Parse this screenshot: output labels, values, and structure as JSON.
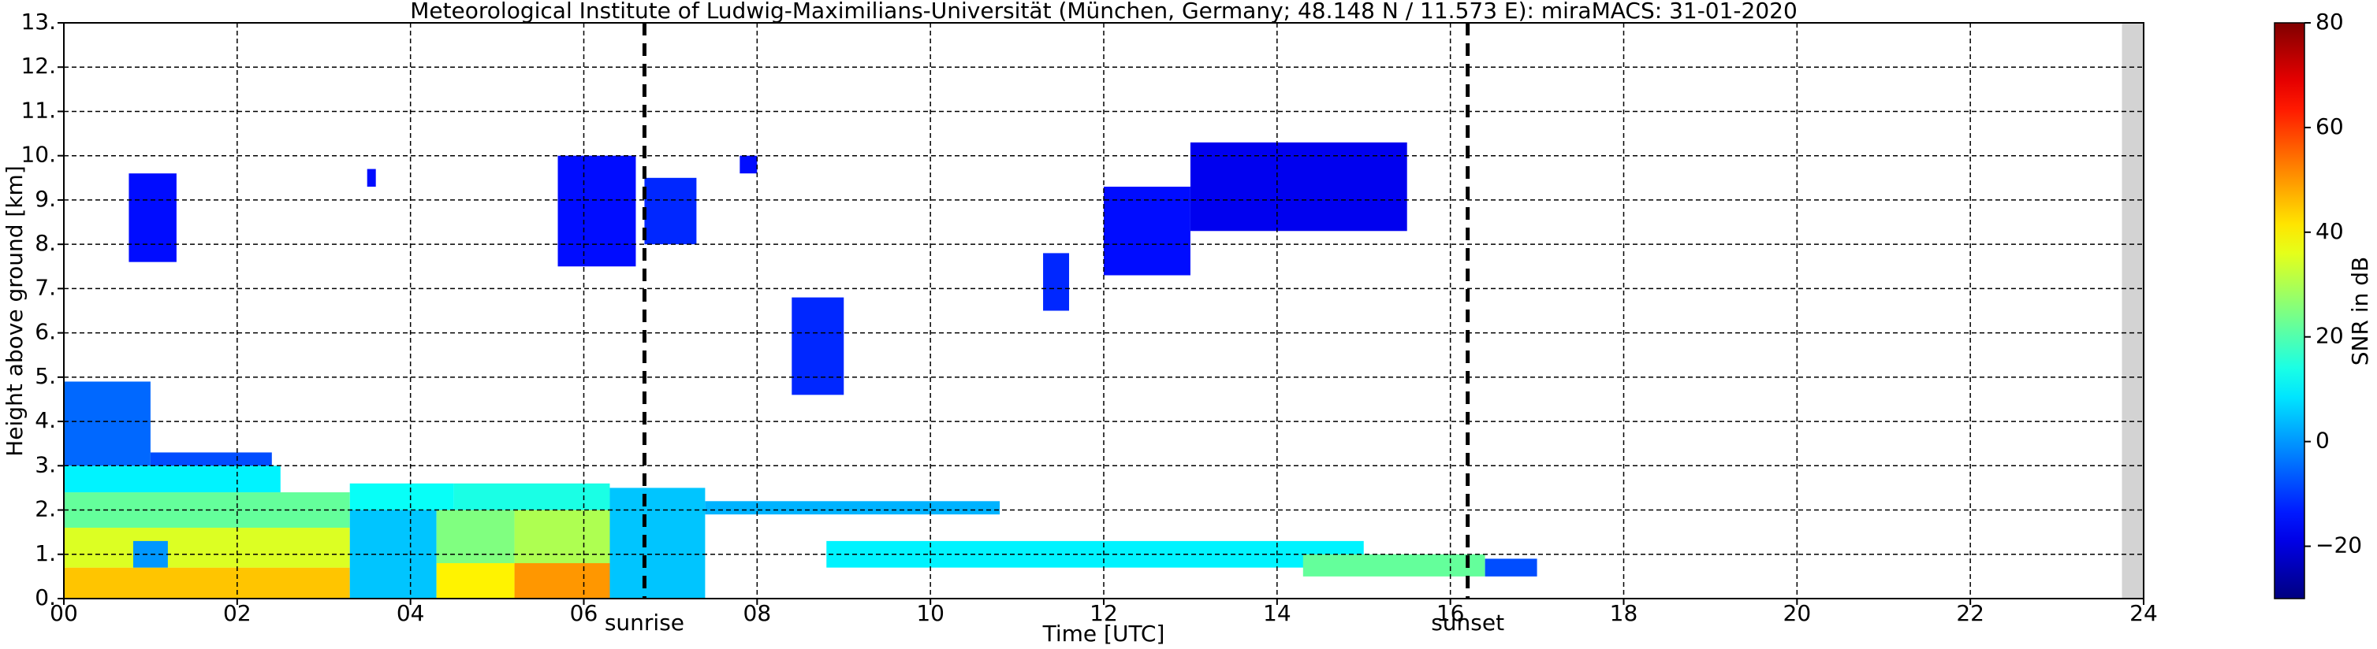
{
  "chart_data": {
    "type": "heatmap",
    "title": "Meteorological Institute of Ludwig-Maximilians-Universität (München, Germany; 48.148 N / 11.573 E):    miraMACS: 31-01-2020",
    "xlabel": "Time [UTC]",
    "ylabel": "Height above ground [km]",
    "colorbar_label": "SNR in dB",
    "colormap": "jet",
    "grid": true,
    "xlim": [
      0,
      24
    ],
    "ylim": [
      0,
      13
    ],
    "clim": [
      -30,
      80
    ],
    "xticks": [
      {
        "value": 0,
        "label": "00"
      },
      {
        "value": 2,
        "label": "02"
      },
      {
        "value": 4,
        "label": "04"
      },
      {
        "value": 6,
        "label": "06"
      },
      {
        "value": 8,
        "label": "08"
      },
      {
        "value": 10,
        "label": "10"
      },
      {
        "value": 12,
        "label": "12"
      },
      {
        "value": 14,
        "label": "14"
      },
      {
        "value": 16,
        "label": "16"
      },
      {
        "value": 18,
        "label": "18"
      },
      {
        "value": 20,
        "label": "20"
      },
      {
        "value": 22,
        "label": "22"
      },
      {
        "value": 24,
        "label": "24"
      }
    ],
    "yticks": [
      {
        "value": 0,
        "label": "0."
      },
      {
        "value": 1,
        "label": "1."
      },
      {
        "value": 2,
        "label": "2."
      },
      {
        "value": 3,
        "label": "3."
      },
      {
        "value": 4,
        "label": "4."
      },
      {
        "value": 5,
        "label": "5."
      },
      {
        "value": 6,
        "label": "6."
      },
      {
        "value": 7,
        "label": "7."
      },
      {
        "value": 8,
        "label": "8."
      },
      {
        "value": 9,
        "label": "9."
      },
      {
        "value": 10,
        "label": "10."
      },
      {
        "value": 11,
        "label": "11."
      },
      {
        "value": 12,
        "label": "12."
      },
      {
        "value": 13,
        "label": "13."
      }
    ],
    "cticks": [
      {
        "value": -20,
        "label": "−20"
      },
      0,
      20,
      40,
      60,
      80
    ],
    "annotations": [
      {
        "x": 6.7,
        "label": "sunrise"
      },
      {
        "x": 16.2,
        "label": "sunset"
      }
    ],
    "no_data_x": [
      23.75,
      24
    ],
    "cells": [
      {
        "x0": 0,
        "x1": 3.3,
        "y0": 0,
        "y1": 0.7,
        "snr": 45
      },
      {
        "x0": 0,
        "x1": 3.3,
        "y0": 0.7,
        "y1": 1.6,
        "snr": 35
      },
      {
        "x0": 0,
        "x1": 3.3,
        "y0": 1.6,
        "y1": 2.4,
        "snr": 22
      },
      {
        "x0": 0,
        "x1": 2.5,
        "y0": 2.4,
        "y1": 3.0,
        "snr": 10
      },
      {
        "x0": 0,
        "x1": 1.0,
        "y0": 3.0,
        "y1": 4.9,
        "snr": -5
      },
      {
        "x0": 1.0,
        "x1": 2.4,
        "y0": 3.0,
        "y1": 3.3,
        "snr": -8
      },
      {
        "x0": 0.8,
        "x1": 1.2,
        "y0": 0.7,
        "y1": 1.3,
        "snr": 0
      },
      {
        "x0": 3.3,
        "x1": 4.3,
        "y0": 0,
        "y1": 2.0,
        "snr": 5
      },
      {
        "x0": 3.3,
        "x1": 4.5,
        "y0": 2.0,
        "y1": 2.6,
        "snr": 12
      },
      {
        "x0": 4.3,
        "x1": 5.2,
        "y0": 0,
        "y1": 0.8,
        "snr": 40
      },
      {
        "x0": 4.3,
        "x1": 5.2,
        "y0": 0.8,
        "y1": 2.0,
        "snr": 25
      },
      {
        "x0": 4.5,
        "x1": 6.3,
        "y0": 2.0,
        "y1": 2.6,
        "snr": 14
      },
      {
        "x0": 5.2,
        "x1": 6.3,
        "y0": 0,
        "y1": 0.8,
        "snr": 50
      },
      {
        "x0": 5.2,
        "x1": 6.3,
        "y0": 0.8,
        "y1": 2.0,
        "snr": 30
      },
      {
        "x0": 6.3,
        "x1": 7.4,
        "y0": 0,
        "y1": 2.5,
        "snr": 5
      },
      {
        "x0": 7.4,
        "x1": 10.8,
        "y0": 1.9,
        "y1": 2.2,
        "snr": 3
      },
      {
        "x0": 8.8,
        "x1": 15,
        "y0": 0.7,
        "y1": 1.3,
        "snr": 10
      },
      {
        "x0": 14.3,
        "x1": 16.4,
        "y0": 0.5,
        "y1": 1.0,
        "snr": 22
      },
      {
        "x0": 16.4,
        "x1": 17,
        "y0": 0.5,
        "y1": 0.9,
        "snr": -8
      },
      {
        "x0": 0.75,
        "x1": 1.3,
        "y0": 7.6,
        "y1": 9.6,
        "snr": -15
      },
      {
        "x0": 5.7,
        "x1": 6.6,
        "y0": 7.5,
        "y1": 10,
        "snr": -15
      },
      {
        "x0": 6.7,
        "x1": 7.3,
        "y0": 8.0,
        "y1": 9.5,
        "snr": -12
      },
      {
        "x0": 8.4,
        "x1": 9.0,
        "y0": 4.6,
        "y1": 6.8,
        "snr": -12
      },
      {
        "x0": 11.3,
        "x1": 11.6,
        "y0": 6.5,
        "y1": 7.8,
        "snr": -12
      },
      {
        "x0": 12,
        "x1": 13,
        "y0": 7.3,
        "y1": 9.3,
        "snr": -15
      },
      {
        "x0": 13,
        "x1": 15.5,
        "y0": 8.3,
        "y1": 10.3,
        "snr": -18
      },
      {
        "x0": 7.8,
        "x1": 8.0,
        "y0": 9.6,
        "y1": 10,
        "snr": -15
      },
      {
        "x0": 3.5,
        "x1": 3.6,
        "y0": 9.3,
        "y1": 9.7,
        "snr": -15
      }
    ]
  }
}
